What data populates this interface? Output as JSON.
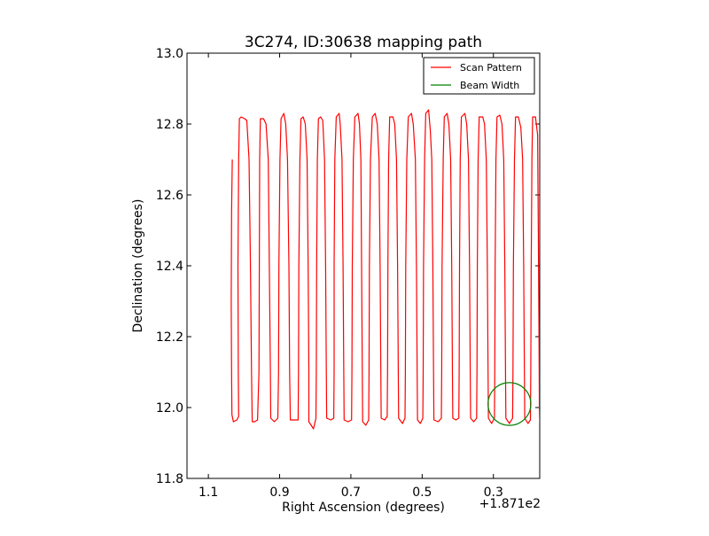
{
  "chart_data": {
    "type": "line",
    "title": "3C274, ID:30638 mapping path",
    "xlabel": "Right Ascension (degrees)",
    "ylabel": "Declination (degrees)",
    "x_offset_label": "+1.871e2",
    "x_axis_inverted": true,
    "xlim": [
      1.16,
      0.17
    ],
    "ylim": [
      11.8,
      13.0
    ],
    "x_ticks": [
      1.1,
      0.9,
      0.7,
      0.5,
      0.3
    ],
    "x_tick_labels": [
      "1.1",
      "0.9",
      "0.7",
      "0.5",
      "0.3"
    ],
    "y_ticks": [
      11.8,
      12.0,
      12.2,
      12.4,
      12.6,
      12.8,
      13.0
    ],
    "y_tick_labels": [
      "11.8",
      "12.0",
      "12.2",
      "12.4",
      "12.6",
      "12.8",
      "13.0"
    ],
    "grid": false,
    "legend_position": "top-right",
    "series": [
      {
        "name": "Scan Pattern",
        "color": "#ff0000",
        "points": [
          [
            1.033,
            12.7
          ],
          [
            1.035,
            12.55
          ],
          [
            1.036,
            12.3
          ],
          [
            1.035,
            12.1
          ],
          [
            1.034,
            11.98
          ],
          [
            1.03,
            11.96
          ],
          [
            1.02,
            11.965
          ],
          [
            1.015,
            11.975
          ],
          [
            1.016,
            12.1
          ],
          [
            1.017,
            12.4
          ],
          [
            1.015,
            12.7
          ],
          [
            1.013,
            12.815
          ],
          [
            1.008,
            12.82
          ],
          [
            0.998,
            12.815
          ],
          [
            0.992,
            12.81
          ],
          [
            0.986,
            12.7
          ],
          [
            0.982,
            12.4
          ],
          [
            0.979,
            12.1
          ],
          [
            0.977,
            11.96
          ],
          [
            0.97,
            11.96
          ],
          [
            0.962,
            11.965
          ],
          [
            0.958,
            12.1
          ],
          [
            0.957,
            12.4
          ],
          [
            0.956,
            12.7
          ],
          [
            0.954,
            12.815
          ],
          [
            0.945,
            12.815
          ],
          [
            0.938,
            12.8
          ],
          [
            0.932,
            12.7
          ],
          [
            0.929,
            12.4
          ],
          [
            0.926,
            12.1
          ],
          [
            0.925,
            11.97
          ],
          [
            0.915,
            11.96
          ],
          [
            0.905,
            11.97
          ],
          [
            0.903,
            12.1
          ],
          [
            0.902,
            12.4
          ],
          [
            0.899,
            12.7
          ],
          [
            0.896,
            12.815
          ],
          [
            0.888,
            12.83
          ],
          [
            0.883,
            12.8
          ],
          [
            0.878,
            12.7
          ],
          [
            0.874,
            12.4
          ],
          [
            0.872,
            12.1
          ],
          [
            0.87,
            11.965
          ],
          [
            0.858,
            11.965
          ],
          [
            0.848,
            11.965
          ],
          [
            0.847,
            12.1
          ],
          [
            0.846,
            12.4
          ],
          [
            0.843,
            12.7
          ],
          [
            0.84,
            12.815
          ],
          [
            0.834,
            12.82
          ],
          [
            0.828,
            12.8
          ],
          [
            0.823,
            12.7
          ],
          [
            0.82,
            12.4
          ],
          [
            0.818,
            12.1
          ],
          [
            0.818,
            11.96
          ],
          [
            0.805,
            11.94
          ],
          [
            0.798,
            11.97
          ],
          [
            0.797,
            12.1
          ],
          [
            0.796,
            12.4
          ],
          [
            0.794,
            12.7
          ],
          [
            0.791,
            12.815
          ],
          [
            0.785,
            12.82
          ],
          [
            0.779,
            12.81
          ],
          [
            0.774,
            12.7
          ],
          [
            0.771,
            12.4
          ],
          [
            0.769,
            12.1
          ],
          [
            0.768,
            11.97
          ],
          [
            0.756,
            11.965
          ],
          [
            0.748,
            11.97
          ],
          [
            0.747,
            12.1
          ],
          [
            0.747,
            12.4
          ],
          [
            0.745,
            12.7
          ],
          [
            0.741,
            12.82
          ],
          [
            0.733,
            12.83
          ],
          [
            0.73,
            12.8
          ],
          [
            0.725,
            12.7
          ],
          [
            0.722,
            12.4
          ],
          [
            0.72,
            12.1
          ],
          [
            0.719,
            11.965
          ],
          [
            0.708,
            11.96
          ],
          [
            0.698,
            11.965
          ],
          [
            0.697,
            12.1
          ],
          [
            0.696,
            12.4
          ],
          [
            0.693,
            12.7
          ],
          [
            0.689,
            12.82
          ],
          [
            0.68,
            12.83
          ],
          [
            0.676,
            12.8
          ],
          [
            0.672,
            12.7
          ],
          [
            0.67,
            12.4
          ],
          [
            0.668,
            12.1
          ],
          [
            0.667,
            11.96
          ],
          [
            0.658,
            11.95
          ],
          [
            0.65,
            11.965
          ],
          [
            0.649,
            12.1
          ],
          [
            0.648,
            12.4
          ],
          [
            0.645,
            12.7
          ],
          [
            0.64,
            12.82
          ],
          [
            0.632,
            12.83
          ],
          [
            0.626,
            12.8
          ],
          [
            0.621,
            12.7
          ],
          [
            0.618,
            12.4
          ],
          [
            0.616,
            12.1
          ],
          [
            0.615,
            11.97
          ],
          [
            0.605,
            11.965
          ],
          [
            0.598,
            11.975
          ],
          [
            0.597,
            12.1
          ],
          [
            0.596,
            12.4
          ],
          [
            0.594,
            12.7
          ],
          [
            0.591,
            12.82
          ],
          [
            0.582,
            12.82
          ],
          [
            0.577,
            12.8
          ],
          [
            0.572,
            12.7
          ],
          [
            0.569,
            12.4
          ],
          [
            0.567,
            12.1
          ],
          [
            0.566,
            11.97
          ],
          [
            0.555,
            11.955
          ],
          [
            0.548,
            11.97
          ],
          [
            0.547,
            12.1
          ],
          [
            0.546,
            12.4
          ],
          [
            0.543,
            12.7
          ],
          [
            0.539,
            12.82
          ],
          [
            0.53,
            12.83
          ],
          [
            0.525,
            12.8
          ],
          [
            0.519,
            12.7
          ],
          [
            0.516,
            12.4
          ],
          [
            0.514,
            12.1
          ],
          [
            0.513,
            11.965
          ],
          [
            0.505,
            11.955
          ],
          [
            0.498,
            11.97
          ],
          [
            0.497,
            12.1
          ],
          [
            0.496,
            12.4
          ],
          [
            0.493,
            12.7
          ],
          [
            0.49,
            12.83
          ],
          [
            0.482,
            12.84
          ],
          [
            0.477,
            12.78
          ],
          [
            0.473,
            12.7
          ],
          [
            0.47,
            12.4
          ],
          [
            0.468,
            12.1
          ],
          [
            0.467,
            11.965
          ],
          [
            0.455,
            11.96
          ],
          [
            0.446,
            11.97
          ],
          [
            0.445,
            12.1
          ],
          [
            0.444,
            12.4
          ],
          [
            0.441,
            12.7
          ],
          [
            0.438,
            12.82
          ],
          [
            0.43,
            12.83
          ],
          [
            0.425,
            12.8
          ],
          [
            0.42,
            12.7
          ],
          [
            0.417,
            12.4
          ],
          [
            0.415,
            12.1
          ],
          [
            0.414,
            11.97
          ],
          [
            0.405,
            11.965
          ],
          [
            0.397,
            11.97
          ],
          [
            0.396,
            12.1
          ],
          [
            0.395,
            12.4
          ],
          [
            0.393,
            12.7
          ],
          [
            0.39,
            12.82
          ],
          [
            0.38,
            12.83
          ],
          [
            0.375,
            12.8
          ],
          [
            0.37,
            12.7
          ],
          [
            0.367,
            12.4
          ],
          [
            0.365,
            12.1
          ],
          [
            0.364,
            11.97
          ],
          [
            0.355,
            11.96
          ],
          [
            0.347,
            11.97
          ],
          [
            0.346,
            12.1
          ],
          [
            0.345,
            12.4
          ],
          [
            0.343,
            12.7
          ],
          [
            0.34,
            12.82
          ],
          [
            0.33,
            12.82
          ],
          [
            0.325,
            12.8
          ],
          [
            0.32,
            12.7
          ],
          [
            0.317,
            12.4
          ],
          [
            0.315,
            12.1
          ],
          [
            0.314,
            11.97
          ],
          [
            0.305,
            11.955
          ],
          [
            0.297,
            11.97
          ],
          [
            0.296,
            12.1
          ],
          [
            0.295,
            12.4
          ],
          [
            0.293,
            12.7
          ],
          [
            0.29,
            12.82
          ],
          [
            0.282,
            12.825
          ],
          [
            0.276,
            12.8
          ],
          [
            0.271,
            12.7
          ],
          [
            0.268,
            12.4
          ],
          [
            0.266,
            12.1
          ],
          [
            0.265,
            11.97
          ],
          [
            0.255,
            11.955
          ],
          [
            0.246,
            11.97
          ],
          [
            0.245,
            12.1
          ],
          [
            0.244,
            12.4
          ],
          [
            0.241,
            12.7
          ],
          [
            0.238,
            12.82
          ],
          [
            0.23,
            12.82
          ],
          [
            0.223,
            12.79
          ],
          [
            0.218,
            12.7
          ],
          [
            0.215,
            12.4
          ],
          [
            0.213,
            12.1
          ],
          [
            0.212,
            11.97
          ],
          [
            0.203,
            11.955
          ],
          [
            0.196,
            11.965
          ],
          [
            0.195,
            12.1
          ],
          [
            0.194,
            12.4
          ],
          [
            0.192,
            12.7
          ],
          [
            0.19,
            12.82
          ],
          [
            0.182,
            12.82
          ],
          [
            0.176,
            12.77
          ],
          [
            0.174,
            12.5
          ],
          [
            0.172,
            12.2
          ],
          [
            0.171,
            12.0
          ],
          [
            0.17,
            11.96
          ]
        ]
      },
      {
        "name": "Beam Width",
        "color": "#008000",
        "shape": "circle",
        "center": [
          0.255,
          12.01
        ],
        "radius_deg": 0.06
      }
    ]
  }
}
